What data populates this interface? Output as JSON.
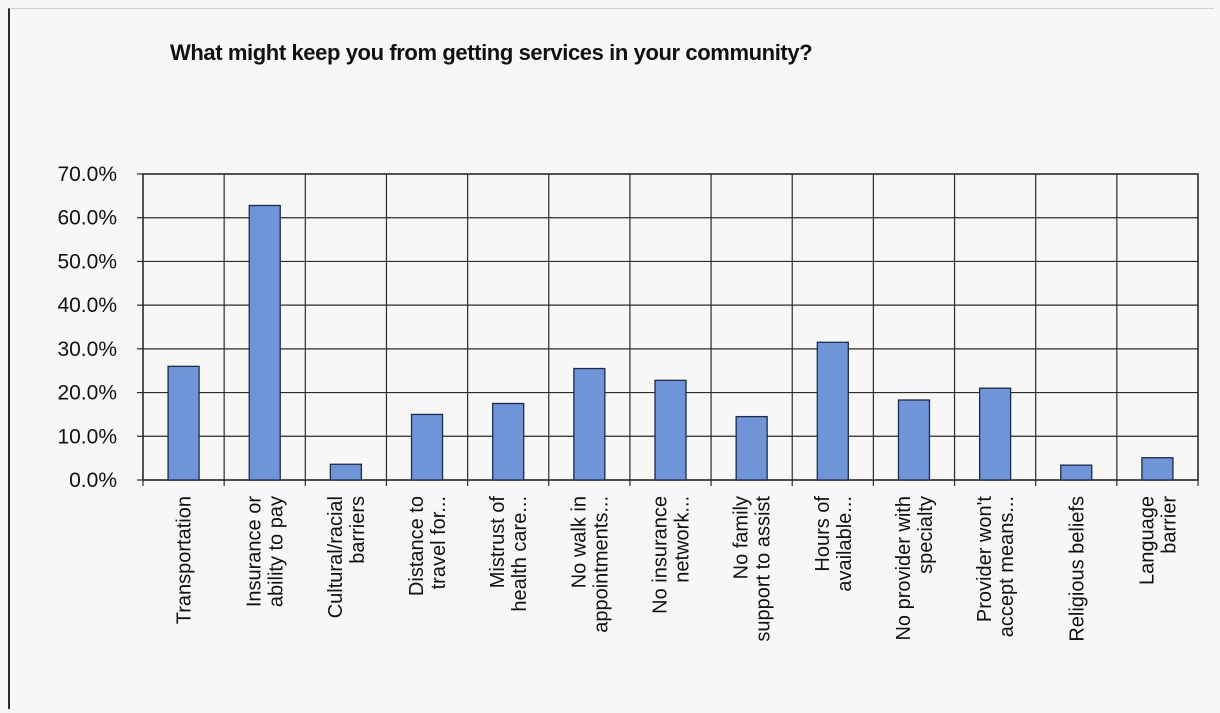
{
  "chart_data": {
    "type": "bar",
    "title": "What might keep you from getting services in your community?",
    "xlabel": "",
    "ylabel": "",
    "ylim": [
      0,
      70
    ],
    "y_ticks": [
      "0.0%",
      "10.0%",
      "20.0%",
      "30.0%",
      "40.0%",
      "50.0%",
      "60.0%",
      "70.0%"
    ],
    "grid": true,
    "legend": "none",
    "categories": [
      [
        "Transportation"
      ],
      [
        "Insurance or",
        "ability to pay"
      ],
      [
        "Cultural/racial",
        "barriers"
      ],
      [
        "Distance to",
        "travel for..."
      ],
      [
        "Mistrust of",
        "health care..."
      ],
      [
        "No walk in",
        "appointments..."
      ],
      [
        "No insurance",
        "network..."
      ],
      [
        "No family",
        "support to assist"
      ],
      [
        "Hours of",
        "available..."
      ],
      [
        "No provider with",
        "specialty"
      ],
      [
        "Provider won't",
        "accept means..."
      ],
      [
        "Religious beliefs"
      ],
      [
        "Language",
        "barrier"
      ]
    ],
    "values": [
      26.0,
      62.8,
      3.6,
      15.0,
      17.5,
      25.5,
      22.8,
      14.5,
      31.5,
      18.3,
      21.0,
      3.4,
      5.1
    ],
    "colors": {
      "bar_fill": "#6f94d8",
      "bar_stroke": "#1d2c4a",
      "grid": "#2b2b2b",
      "plot_bg": "#f7f7f5"
    }
  }
}
